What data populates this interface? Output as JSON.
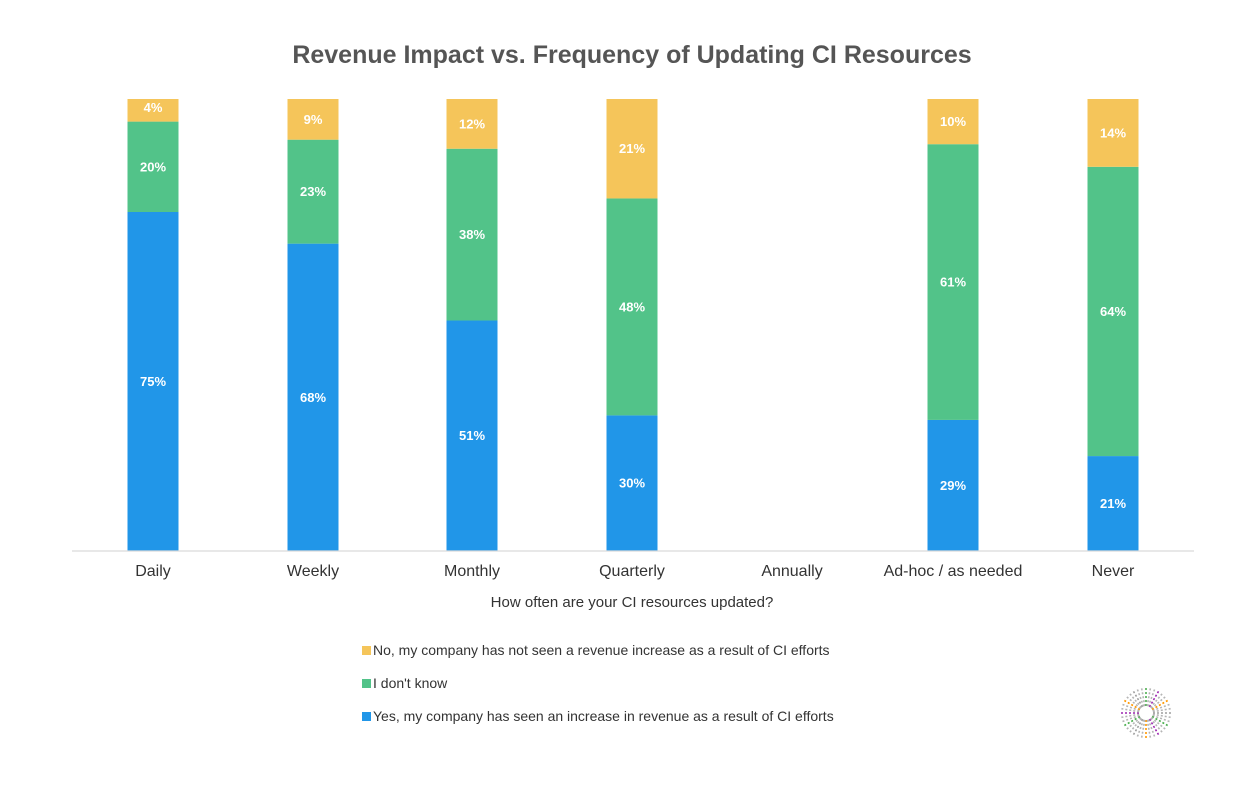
{
  "chart_data": {
    "type": "bar",
    "stacked": true,
    "title": "Revenue Impact vs. Frequency of Updating CI Resources",
    "xlabel": "How often are your CI resources updated?",
    "ylabel": "",
    "ylim": [
      0,
      100
    ],
    "grid": false,
    "legend_position": "bottom",
    "categories": [
      "Daily",
      "Weekly",
      "Monthly",
      "Quarterly",
      "Annually",
      "Ad-hoc / as needed",
      "Never"
    ],
    "series": [
      {
        "name": "Yes, my company has seen an increase in revenue as a result of CI efforts",
        "color": "#2196e8",
        "values": [
          75,
          68,
          51,
          30,
          null,
          29,
          21
        ],
        "labels": [
          "75%",
          "68%",
          "51%",
          "30%",
          "",
          "29%",
          "21%"
        ]
      },
      {
        "name": "I don't know",
        "color": "#52c389",
        "values": [
          20,
          23,
          38,
          48,
          null,
          61,
          64
        ],
        "labels": [
          "20%",
          "23%",
          "38%",
          "48%",
          "",
          "61%",
          "64%"
        ]
      },
      {
        "name": "No, my company has not seen a revenue increase as a result of CI efforts",
        "color": "#f5c55a",
        "values": [
          4,
          9,
          12,
          21,
          null,
          10,
          14
        ],
        "labels": [
          "4%",
          "9%",
          "12%",
          "21%",
          "",
          "10%",
          "14%"
        ]
      }
    ],
    "legend_order": [
      2,
      1,
      0
    ]
  },
  "logo": {
    "name": "starburst-logo"
  }
}
